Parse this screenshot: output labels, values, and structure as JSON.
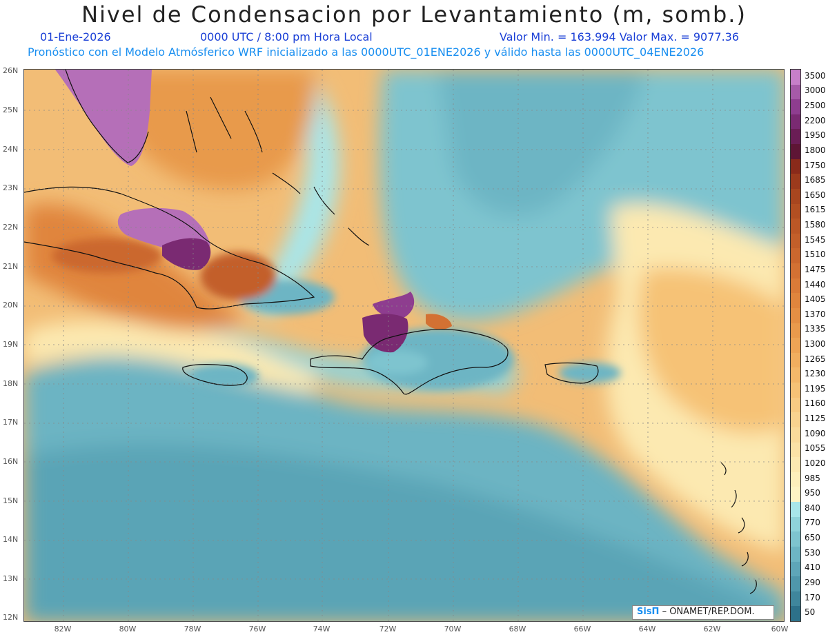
{
  "header": {
    "title": "Nivel de Condensacion por Levantamiento (m, somb.)",
    "date": "01-Ene-2026",
    "time": "0000 UTC / 8:00 pm Hora Local",
    "minmax": "Valor Min. = 163.994   Valor Max. = 9077.36",
    "forecast": "Pronóstico con el Modelo Atmósferico WRF inicializado a las 0000UTC_01ENE2026 y válido hasta las  0000UTC_04ENE2026"
  },
  "axes": {
    "lat_labels": [
      "26N",
      "25N",
      "24N",
      "23N",
      "22N",
      "21N",
      "20N",
      "19N",
      "18N",
      "17N",
      "16N",
      "15N",
      "14N",
      "13N",
      "12N"
    ],
    "lon_labels": [
      "82W",
      "80W",
      "78W",
      "76W",
      "74W",
      "72W",
      "70W",
      "68W",
      "66W",
      "64W",
      "62W",
      "60W"
    ]
  },
  "legend": {
    "levels": [
      "3500",
      "3000",
      "2500",
      "2200",
      "1950",
      "1800",
      "1750",
      "1685",
      "1650",
      "1615",
      "1580",
      "1545",
      "1510",
      "1475",
      "1440",
      "1405",
      "1370",
      "1335",
      "1300",
      "1265",
      "1230",
      "1195",
      "1160",
      "1125",
      "1090",
      "1055",
      "1020",
      "985",
      "950",
      "840",
      "770",
      "650",
      "530",
      "410",
      "290",
      "170",
      "50"
    ],
    "colors": [
      "#c77fc9",
      "#a65aa8",
      "#8e3d8f",
      "#7a2a72",
      "#6a1d55",
      "#5e1535",
      "#8a2a1a",
      "#9c3a1c",
      "#a8461f",
      "#b24f22",
      "#bb5726",
      "#c35f2a",
      "#cb672e",
      "#d37133",
      "#da7b38",
      "#e0853d",
      "#e58f44",
      "#ea9a4c",
      "#ee a455",
      "#f1ae5f",
      "#f4b86a",
      "#f6c276",
      "#f8cb83",
      "#f9d38f",
      "#fadb9b",
      "#fbe2a6",
      "#fce9b1",
      "#fdefbb",
      "#fef4c4",
      "#a8e6ea",
      "#8fd3da",
      "#7ec4cf",
      "#6db5c4",
      "#5ea6b8",
      "#4f97ab",
      "#3f869c",
      "#2d718a"
    ]
  },
  "credit": {
    "brand": "SisΠ",
    "text": " – ONAMET/REP.DOM."
  }
}
